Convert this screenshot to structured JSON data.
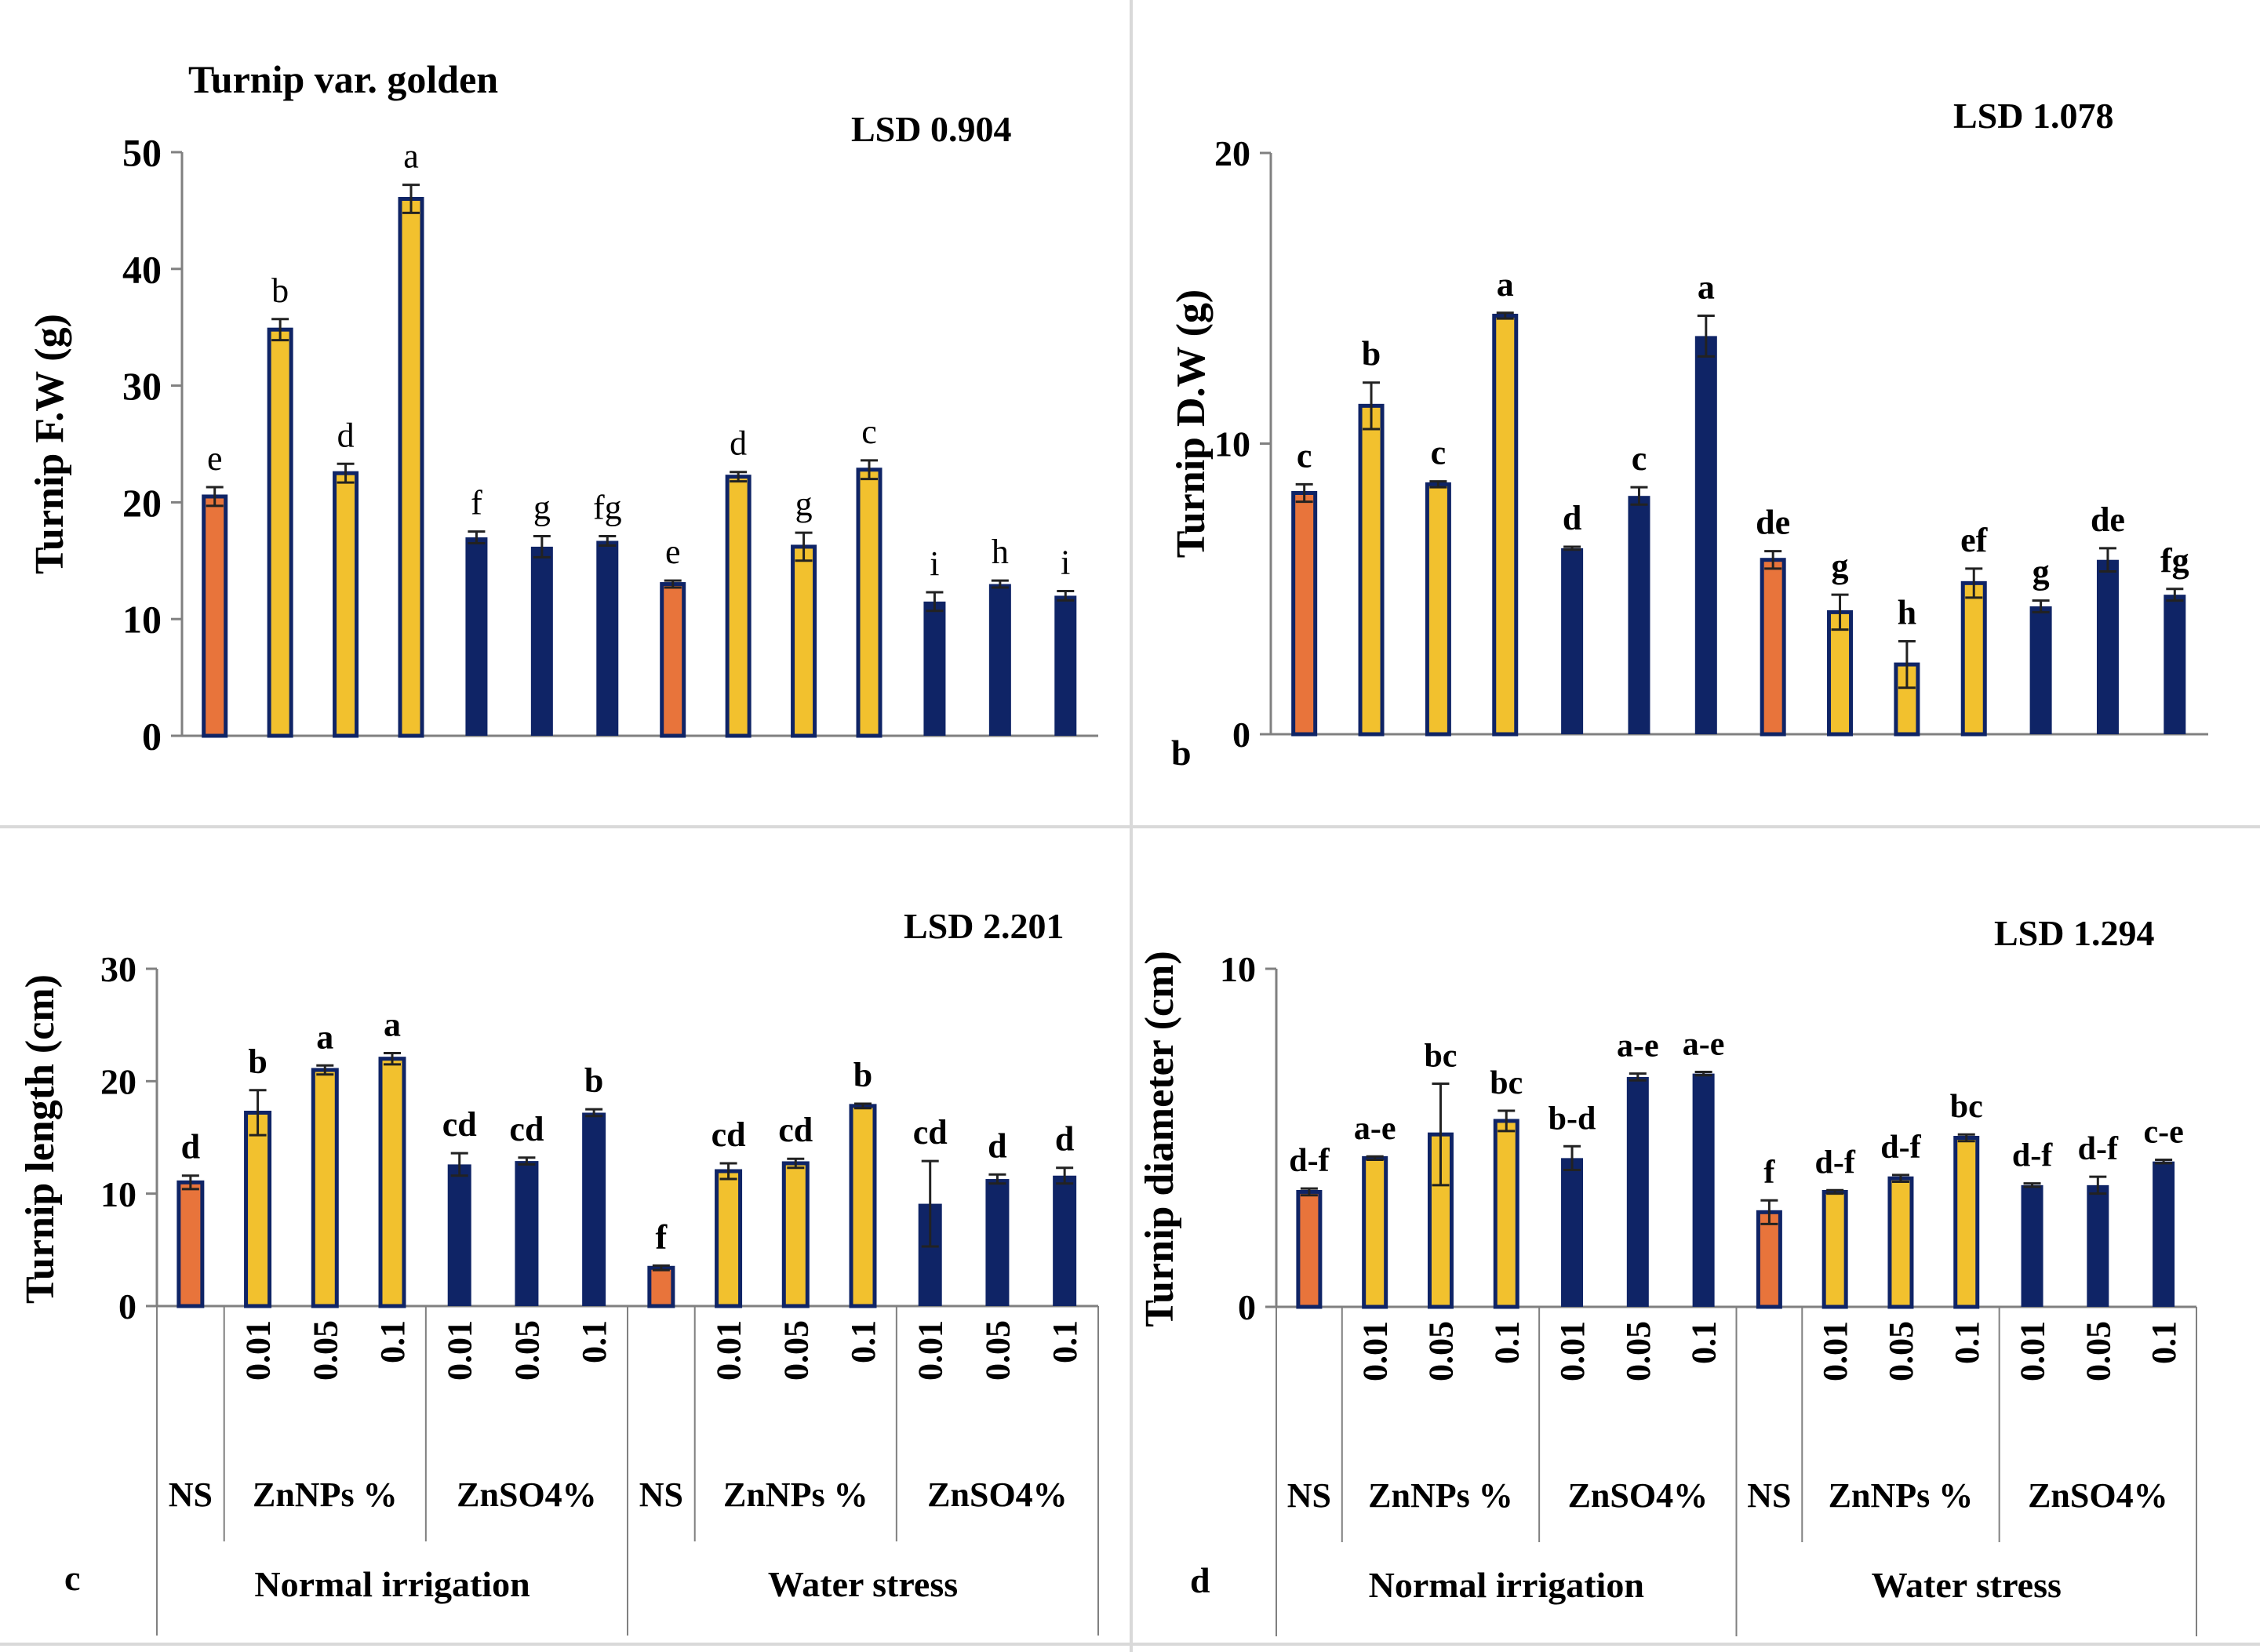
{
  "colors": {
    "ns": "#E8743B",
    "znnps": "#F2C12E",
    "znso4": "#0F2466",
    "axis": "#808080",
    "text": "#000000",
    "divider": "#d9d9d9"
  },
  "shared_x": {
    "tick_labels": [
      "",
      "0.01",
      "0.05",
      "0.1",
      "0.01",
      "0.05",
      "0.1",
      "",
      "0.01",
      "0.05",
      "0.1",
      "0.01",
      "0.05",
      "0.1"
    ],
    "groups": [
      "NS",
      "ZnNPs %",
      "ZnSO4%",
      "NS",
      "ZnNPs %",
      "ZnSO4%"
    ],
    "conditions": [
      "Normal irrigation",
      "Water stress"
    ]
  },
  "chart_data": [
    {
      "type": "bar",
      "panel": "",
      "title": "Turnip  var.  golden",
      "lsd": "LSD 0.904",
      "ylabel": "Turnip  F.W (g)",
      "ylim": [
        0,
        50
      ],
      "yticks": [
        "0",
        "10",
        "20",
        "30",
        "40",
        "50"
      ],
      "values": [
        20.5,
        34.8,
        22.5,
        46.0,
        17.0,
        16.2,
        16.7,
        13.0,
        22.2,
        16.2,
        22.8,
        11.5,
        13.0,
        12.0
      ],
      "errors": [
        0.8,
        0.9,
        0.8,
        1.2,
        0.5,
        0.9,
        0.4,
        0.3,
        0.4,
        1.2,
        0.8,
        0.8,
        0.3,
        0.4
      ],
      "letters": [
        "e",
        "b",
        "d",
        "a",
        "f",
        "g",
        "fg",
        "e",
        "d",
        "g",
        "c",
        "i",
        "h",
        "i"
      ]
    },
    {
      "type": "bar",
      "panel": "b",
      "title": "",
      "lsd": "LSD 1.078",
      "ylabel": "Turnip D.W (g)",
      "ylim": [
        0,
        20
      ],
      "yticks": [
        "0",
        "10",
        "20"
      ],
      "values": [
        8.3,
        11.3,
        8.6,
        14.4,
        6.4,
        8.2,
        13.7,
        6.0,
        4.2,
        2.4,
        5.2,
        4.4,
        6.0,
        4.8
      ],
      "errors": [
        0.3,
        0.8,
        0.1,
        0.1,
        0.05,
        0.3,
        0.7,
        0.3,
        0.6,
        0.8,
        0.5,
        0.2,
        0.4,
        0.2
      ],
      "letters": [
        "c",
        "b",
        "c",
        "a",
        "d",
        "c",
        "a",
        "de",
        "g",
        "h",
        "ef",
        "g",
        "de",
        "fg"
      ]
    },
    {
      "type": "bar",
      "panel": "c",
      "title": "",
      "lsd": "LSD 2.201",
      "ylabel": "Turnip length (cm)",
      "ylim": [
        0,
        30
      ],
      "yticks": [
        "0",
        "10",
        "20",
        "30"
      ],
      "values": [
        11.0,
        17.2,
        21.0,
        22.0,
        12.6,
        12.9,
        17.2,
        3.4,
        12.0,
        12.7,
        17.8,
        9.1,
        11.3,
        11.6
      ],
      "errors": [
        0.6,
        2.0,
        0.4,
        0.5,
        1.0,
        0.3,
        0.3,
        0.2,
        0.7,
        0.4,
        0.2,
        3.8,
        0.4,
        0.7
      ],
      "letters": [
        "d",
        "b",
        "a",
        "a",
        "cd",
        "cd",
        "b",
        "f",
        "cd",
        "cd",
        "b",
        "cd",
        "d",
        "d"
      ]
    },
    {
      "type": "bar",
      "panel": "d",
      "title": "",
      "lsd": "LSD 1.294",
      "ylabel": "Turnip diameter (cm)",
      "ylim": [
        0,
        10
      ],
      "yticks": [
        "0",
        "10"
      ],
      "values": [
        3.4,
        4.4,
        5.1,
        5.5,
        4.4,
        6.8,
        6.9,
        2.8,
        3.4,
        3.8,
        5.0,
        3.6,
        3.6,
        4.3
      ],
      "errors": [
        0.1,
        0.05,
        1.5,
        0.3,
        0.35,
        0.1,
        0.05,
        0.35,
        0.05,
        0.1,
        0.1,
        0.05,
        0.25,
        0.05
      ],
      "letters": [
        "d-f",
        "a-e",
        "bc",
        "bc",
        "b-d",
        "a-e",
        "a-e",
        "f",
        "d-f",
        "d-f",
        "bc",
        "d-f",
        "d-f",
        "c-e"
      ]
    }
  ]
}
